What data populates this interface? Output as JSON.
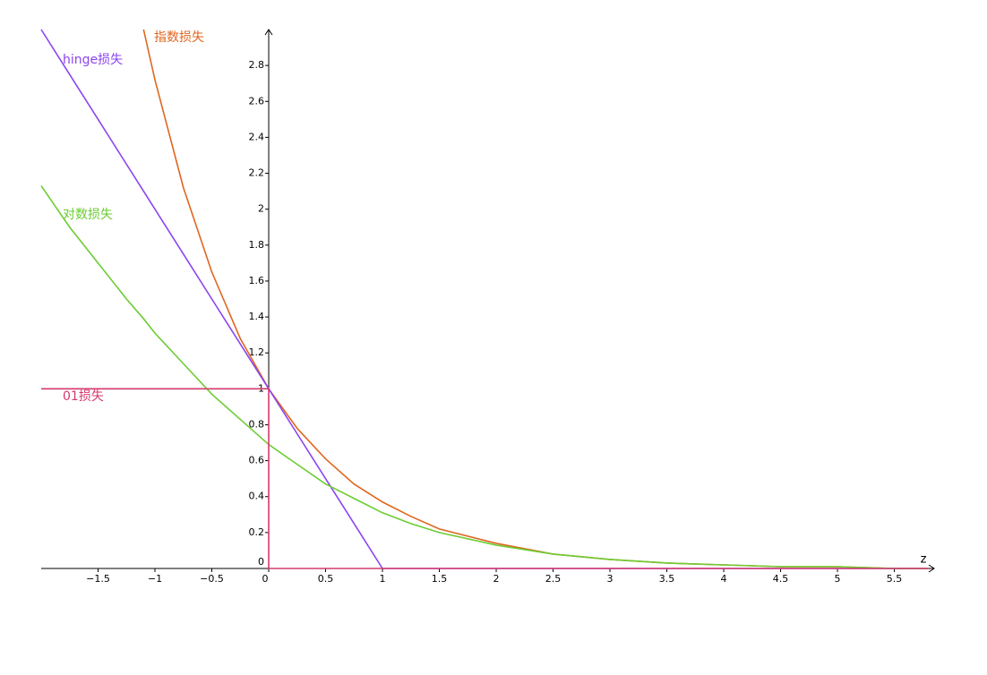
{
  "chart_data": {
    "type": "line",
    "x": [
      -2,
      -1.75,
      -1.5,
      -1.25,
      -1.1,
      -1,
      -0.75,
      -0.5,
      -0.25,
      0,
      0.25,
      0.5,
      0.75,
      1,
      1.25,
      1.5,
      2,
      2.5,
      3,
      3.5,
      4,
      4.5,
      5,
      5.5,
      5.8
    ],
    "xlabel": "z",
    "series": [
      {
        "name": "指数损失",
        "color": "#e0661f",
        "values": [
          null,
          null,
          null,
          null,
          3.0,
          2.72,
          2.12,
          1.65,
          1.28,
          1,
          0.78,
          0.61,
          0.47,
          0.37,
          0.29,
          0.22,
          0.14,
          0.08,
          0.05,
          0.03,
          0.02,
          0.01,
          0.01,
          0,
          0
        ]
      },
      {
        "name": "hinge损失",
        "color": "#8c44f0",
        "values": [
          3,
          2.75,
          2.5,
          2.25,
          2.1,
          2,
          1.75,
          1.5,
          1.25,
          1,
          0.75,
          0.5,
          0.25,
          0,
          0,
          0,
          0,
          0,
          0,
          0,
          0,
          0,
          0,
          0,
          0
        ]
      },
      {
        "name": "对数损失",
        "color": "#6ccc32",
        "values": [
          2.13,
          1.9,
          1.7,
          1.5,
          1.39,
          1.31,
          1.14,
          0.97,
          0.83,
          0.69,
          0.58,
          0.47,
          0.39,
          0.31,
          0.25,
          0.2,
          0.13,
          0.08,
          0.05,
          0.03,
          0.02,
          0.01,
          0.01,
          0,
          0
        ]
      },
      {
        "name": "01损失",
        "color": "#d53a6e",
        "x": [
          -2,
          0,
          0,
          5.8
        ],
        "values": [
          1,
          1,
          0,
          0
        ]
      }
    ],
    "xlim": [
      -2,
      5.85
    ],
    "ylim": [
      0,
      3
    ],
    "xticks": [
      {
        "value": -1.5,
        "label": "−1.5"
      },
      {
        "value": -1,
        "label": "−1"
      },
      {
        "value": -0.5,
        "label": "−0.5"
      },
      0,
      0.5,
      1,
      1.5,
      2,
      2.5,
      3,
      3.5,
      4,
      4.5,
      5,
      5.5
    ],
    "yticks": [
      0,
      0.2,
      0.4,
      0.6,
      0.8,
      1,
      1.2,
      1.4,
      1.6,
      1.8,
      2,
      2.2,
      2.4,
      2.6,
      2.8
    ]
  }
}
